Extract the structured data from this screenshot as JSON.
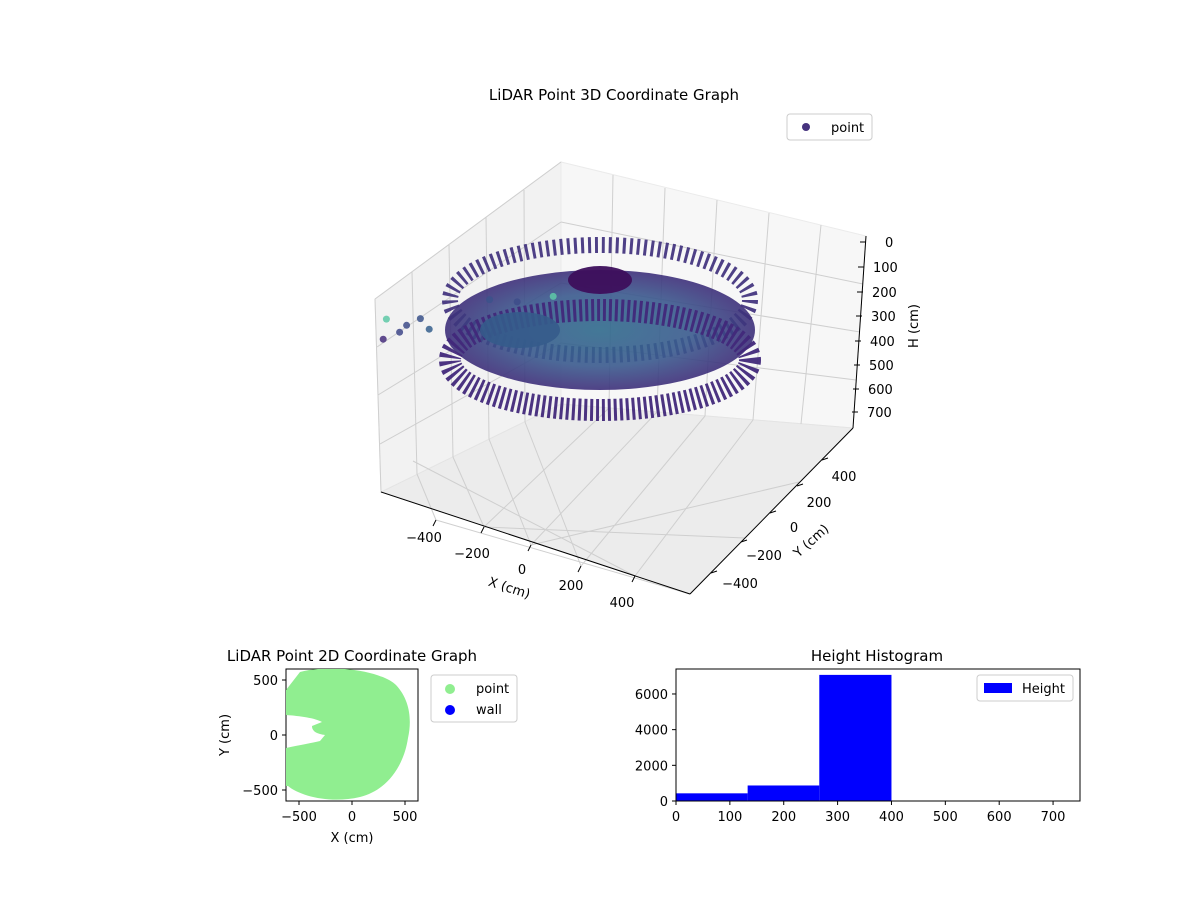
{
  "chart_data": [
    {
      "type": "scatter",
      "projection": "3d",
      "title": "LiDAR Point 3D Coordinate Graph",
      "xlabel": "X (cm)",
      "ylabel": "Y (cm)",
      "zlabel": "H (cm)",
      "x_ticks": [
        "−400",
        "−200",
        "0",
        "200",
        "400"
      ],
      "y_ticks": [
        "400",
        "200",
        "0",
        "−200",
        "−400"
      ],
      "z_ticks": [
        "0",
        "100",
        "200",
        "300",
        "400",
        "500",
        "600",
        "700"
      ],
      "zlim": [
        0,
        700
      ],
      "z_inverted": true,
      "grid": true,
      "legend": {
        "position": "top-right",
        "entries": [
          {
            "label": "point",
            "color": "#46337e"
          }
        ]
      },
      "colormap": "viridis",
      "series": [
        {
          "name": "point",
          "description_points": [
            {
              "x": -480,
              "y": -100,
              "z": 580
            },
            {
              "x": -450,
              "y": 20,
              "z": 560
            },
            {
              "x": -430,
              "y": 150,
              "z": 480
            },
            {
              "x": -380,
              "y": 260,
              "z": 520
            },
            {
              "x": -320,
              "y": 300,
              "z": 460
            },
            {
              "x": -260,
              "y": 280,
              "z": 440
            },
            {
              "x": -200,
              "y": 120,
              "z": 350
            },
            {
              "x": -150,
              "y": 90,
              "z": 360
            },
            {
              "x": -80,
              "y": 60,
              "z": 330
            }
          ]
        }
      ]
    },
    {
      "type": "scatter",
      "title": "LiDAR Point 2D Coordinate Graph",
      "xlabel": "X (cm)",
      "ylabel": "Y (cm)",
      "xlim": [
        -580,
        580
      ],
      "ylim": [
        -600,
        600
      ],
      "x_ticks": [
        "−500",
        "0",
        "500"
      ],
      "y_ticks": [
        "500",
        "0",
        "−500"
      ],
      "legend": {
        "position": "outside-right",
        "entries": [
          {
            "label": "point",
            "color": "#90ee90"
          },
          {
            "label": "wall",
            "color": "#0000ff"
          }
        ]
      },
      "series": [
        {
          "name": "point",
          "color": "#90ee90",
          "shape": "disc of radius ~500 cm centered near (-30, 0) with a notch opening to the left around y=0..100"
        },
        {
          "name": "wall",
          "color": "#0000ff",
          "points": []
        }
      ]
    },
    {
      "type": "bar",
      "subtype": "histogram",
      "title": "Height Histogram",
      "xlim": [
        0,
        750
      ],
      "ylim": [
        0,
        7400
      ],
      "x_ticks": [
        "0",
        "100",
        "200",
        "300",
        "400",
        "500",
        "600",
        "700"
      ],
      "y_ticks": [
        "0",
        "2000",
        "4000",
        "6000"
      ],
      "legend": {
        "position": "top-right",
        "entries": [
          {
            "label": "Height",
            "color": "#0000ff"
          }
        ]
      },
      "bins": [
        {
          "x0": 0,
          "x1": 133,
          "count": 430
        },
        {
          "x0": 133,
          "x1": 266,
          "count": 870
        },
        {
          "x0": 266,
          "x1": 400,
          "count": 7070
        }
      ],
      "color": "#0000ff"
    }
  ]
}
